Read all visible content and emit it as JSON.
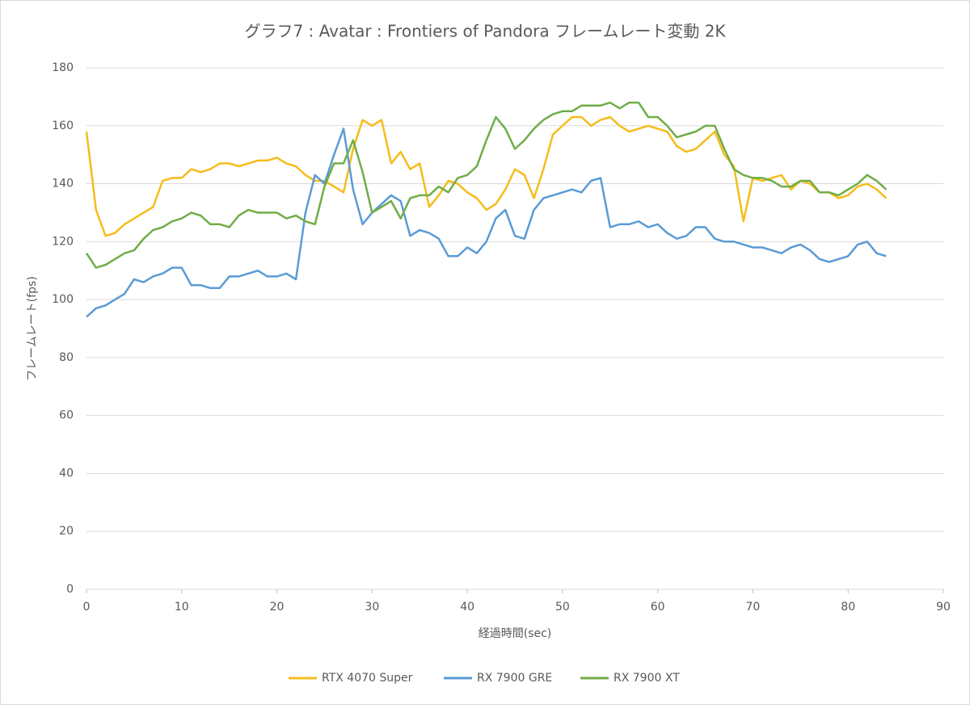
{
  "chart_data": {
    "type": "line",
    "title": "グラフ7 : Avatar : Frontiers of Pandora フレームレート変動 2K",
    "x_label": "経過時間(sec)",
    "y_label": "フレームレート(fps)",
    "x": [
      0,
      1,
      2,
      3,
      4,
      5,
      6,
      7,
      8,
      9,
      10,
      11,
      12,
      13,
      14,
      15,
      16,
      17,
      18,
      19,
      20,
      21,
      22,
      23,
      24,
      25,
      26,
      27,
      28,
      29,
      30,
      31,
      32,
      33,
      34,
      35,
      36,
      37,
      38,
      39,
      40,
      41,
      42,
      43,
      44,
      45,
      46,
      47,
      48,
      49,
      50,
      51,
      52,
      53,
      54,
      55,
      56,
      57,
      58,
      59,
      60,
      61,
      62,
      63,
      64,
      65,
      66,
      67,
      68,
      69,
      70,
      71,
      72,
      73,
      74,
      75,
      76,
      77,
      78,
      79,
      80,
      81,
      82,
      83,
      84
    ],
    "series": [
      {
        "name": "RTX 4070 Super",
        "color": "#f5bc1c",
        "values": [
          158,
          131,
          122,
          123,
          126,
          128,
          130,
          132,
          141,
          142,
          142,
          145,
          144,
          145,
          147,
          147,
          146,
          147,
          148,
          148,
          149,
          147,
          146,
          143,
          141,
          141,
          139,
          137,
          152,
          162,
          160,
          162,
          147,
          151,
          145,
          147,
          132,
          136,
          141,
          140,
          137,
          135,
          131,
          133,
          138,
          145,
          143,
          135,
          145,
          157,
          160,
          163,
          163,
          160,
          162,
          163,
          160,
          158,
          159,
          160,
          159,
          158,
          153,
          151,
          152,
          155,
          158,
          150,
          146,
          127,
          142,
          141,
          142,
          143,
          138,
          141,
          140,
          137,
          137,
          135,
          136,
          139,
          140,
          138,
          135
        ]
      },
      {
        "name": "RX 7900 GRE",
        "color": "#5b9bd5",
        "values": [
          94,
          97,
          98,
          100,
          102,
          107,
          106,
          108,
          109,
          111,
          111,
          105,
          105,
          104,
          104,
          108,
          108,
          109,
          110,
          108,
          108,
          109,
          107,
          130,
          143,
          140,
          150,
          159,
          138,
          126,
          130,
          133,
          136,
          134,
          122,
          124,
          123,
          121,
          115,
          115,
          118,
          116,
          120,
          128,
          131,
          122,
          121,
          131,
          135,
          136,
          137,
          138,
          137,
          141,
          142,
          125,
          126,
          126,
          127,
          125,
          126,
          123,
          121,
          122,
          125,
          125,
          121,
          120,
          120,
          119,
          118,
          118,
          117,
          116,
          118,
          119,
          117,
          114,
          113,
          114,
          115,
          119,
          120,
          116,
          115
        ]
      },
      {
        "name": "RX 7900 XT",
        "color": "#70ad47",
        "values": [
          116,
          111,
          112,
          114,
          116,
          117,
          121,
          124,
          125,
          127,
          128,
          130,
          129,
          126,
          126,
          125,
          129,
          131,
          130,
          130,
          130,
          128,
          129,
          127,
          126,
          139,
          147,
          147,
          155,
          144,
          130,
          132,
          134,
          128,
          135,
          136,
          136,
          139,
          137,
          142,
          143,
          146,
          155,
          163,
          159,
          152,
          155,
          159,
          162,
          164,
          165,
          165,
          167,
          167,
          167,
          168,
          166,
          168,
          168,
          163,
          163,
          160,
          156,
          157,
          158,
          160,
          160,
          152,
          145,
          143,
          142,
          142,
          141,
          139,
          139,
          141,
          141,
          137,
          137,
          136,
          138,
          140,
          143,
          141,
          138
        ]
      }
    ],
    "xlim": [
      0,
      90
    ],
    "xticks": [
      0,
      10,
      20,
      30,
      40,
      50,
      60,
      70,
      80,
      90
    ],
    "ylim": [
      0,
      180
    ],
    "yticks": [
      0,
      20,
      40,
      60,
      80,
      100,
      120,
      140,
      160,
      180
    ],
    "grid": true,
    "legend": "bottom"
  }
}
